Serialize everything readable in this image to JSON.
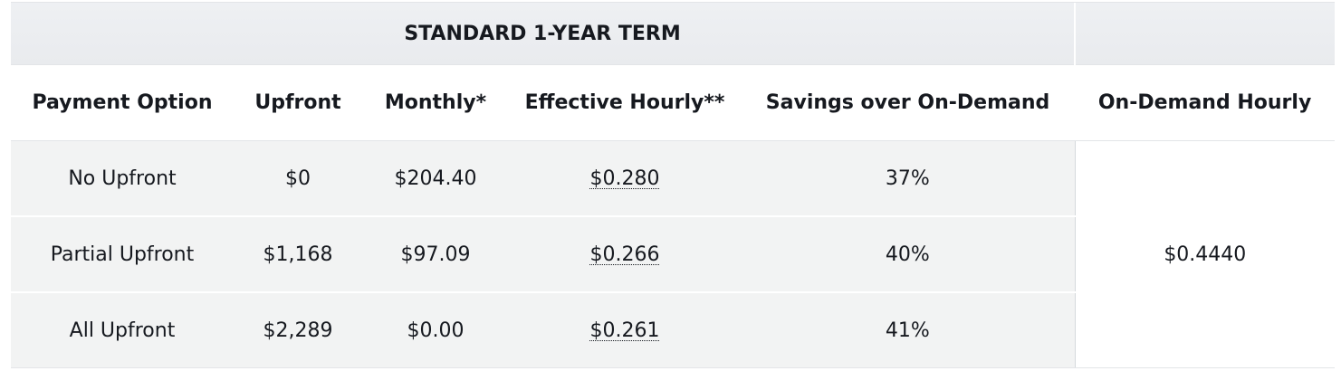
{
  "table": {
    "term_header": "STANDARD 1-YEAR TERM",
    "columns": {
      "payment_option": "Payment Option",
      "upfront": "Upfront",
      "monthly": "Monthly*",
      "effective_hourly": "Effective Hourly**",
      "savings": "Savings over On-Demand",
      "on_demand_hourly": "On-Demand Hourly"
    },
    "rows": [
      {
        "payment_option": "No Upfront",
        "upfront": "$0",
        "monthly": "$204.40",
        "effective_hourly": "$0.280",
        "savings": "37%"
      },
      {
        "payment_option": "Partial Upfront",
        "upfront": "$1,168",
        "monthly": "$97.09",
        "effective_hourly": "$0.266",
        "savings": "40%"
      },
      {
        "payment_option": "All Upfront",
        "upfront": "$2,289",
        "monthly": "$0.00",
        "effective_hourly": "$0.261",
        "savings": "41%"
      }
    ],
    "on_demand_hourly_value": "$0.4440"
  },
  "colors": {
    "header_background": "#eceef1",
    "row_background": "#f2f3f3",
    "text": "#16191f"
  }
}
